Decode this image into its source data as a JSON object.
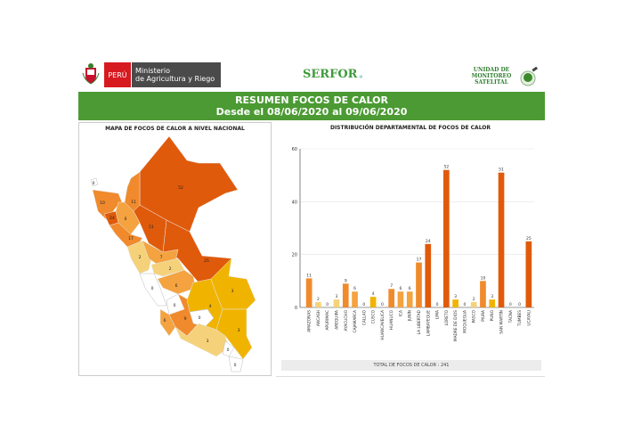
{
  "header": {
    "peru": "PERÚ",
    "ministry_line1": "Ministerio",
    "ministry_line2": "de Agricultura y Riego",
    "serfor": "SERFOR",
    "unit_line1": "UNIDAD DE",
    "unit_line2": "MONITOREO",
    "unit_line3": "SATELITAL"
  },
  "banner": {
    "title": "RESUMEN FOCOS DE CALOR",
    "subtitle": "Desde el 08/06/2020 al 09/06/2020"
  },
  "map_panel": {
    "title": "MAPA DE FOCOS DE CALOR A NIVEL NACIONAL"
  },
  "chart_panel": {
    "total": "TOTAL DE FOCOS DE CALOR : 241"
  },
  "colors": {
    "green": "#4b9a33",
    "dark": "#e05a0b",
    "orange": "#f08a2c",
    "lightorange": "#f4a340",
    "pale": "#f5d27a",
    "gold": "#f0b400"
  },
  "chart_data": {
    "type": "bar",
    "title": "DISTRIBUCIÓN DEPARTAMENTAL DE FOCOS DE CALOR",
    "categories": [
      "AMAZONAS",
      "ANCASH",
      "APURIMAC",
      "AREQUIPA",
      "AYACUCHO",
      "CAJAMARCA",
      "CALLAO",
      "CUSCO",
      "HUANCAVELICA",
      "HUANUCO",
      "ICA",
      "JUNÍN",
      "LA LIBERTAD",
      "LAMBAYEQUE",
      "LIMA",
      "LORETO",
      "MADRE DE DIOS",
      "MOQUEGUA",
      "PASCO",
      "PIURA",
      "PUNO",
      "SAN MARTÍN",
      "TACNA",
      "TUMBES",
      "UCAYALI"
    ],
    "values": [
      11,
      2,
      0,
      3,
      9,
      6,
      0,
      4,
      0,
      7,
      6,
      6,
      17,
      24,
      0,
      52,
      3,
      0,
      2,
      10,
      3,
      51,
      0,
      0,
      25
    ],
    "yticks": [
      "0",
      "20",
      "40",
      "60"
    ],
    "ylim": [
      0,
      60
    ],
    "grid": true
  }
}
